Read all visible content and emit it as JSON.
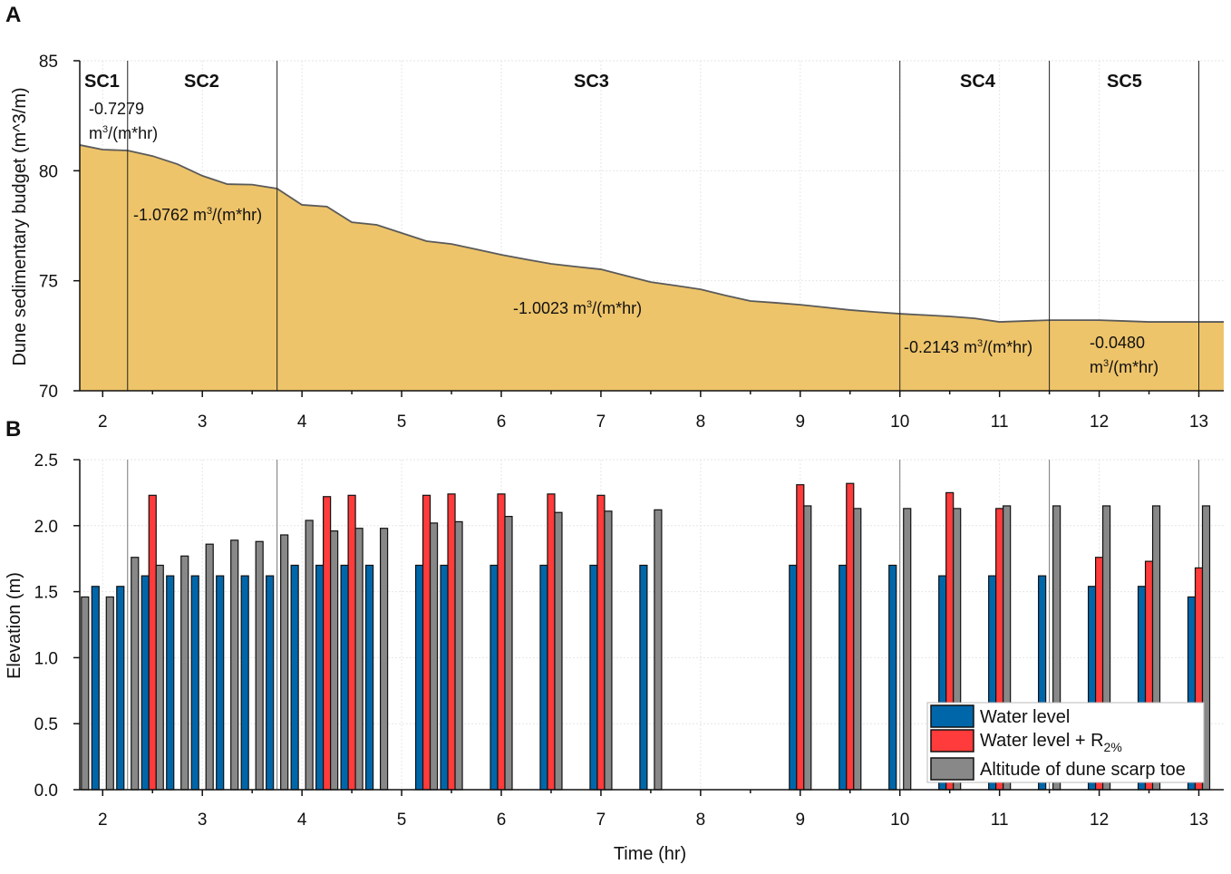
{
  "chart_data": [
    {
      "panel": "A",
      "type": "area",
      "ylabel": "Dune sedimentary budget (m^3/m)",
      "xlim": [
        1.77,
        13.25
      ],
      "ylim": [
        70,
        85
      ],
      "xticks": [
        2,
        3,
        4,
        5,
        6,
        7,
        8,
        9,
        10,
        11,
        12,
        13
      ],
      "yticks": [
        70,
        75,
        80,
        85
      ],
      "grid": true,
      "fill_color": "#EEC46A",
      "line_color": "#5a5a5a",
      "x": [
        1.75,
        2,
        2.25,
        2.5,
        2.75,
        3,
        3.25,
        3.5,
        3.75,
        4,
        4.25,
        4.5,
        4.75,
        5,
        5.25,
        5.5,
        5.75,
        6,
        6.25,
        6.5,
        6.75,
        7,
        7.25,
        7.5,
        7.75,
        8,
        8.25,
        8.5,
        8.75,
        9,
        9.25,
        9.5,
        9.75,
        10,
        10.25,
        10.5,
        10.75,
        11,
        11.25,
        11.5,
        11.75,
        12,
        12.25,
        12.5,
        12.75,
        13,
        13.25
      ],
      "y": [
        81.17,
        80.96,
        80.92,
        80.67,
        80.3,
        79.77,
        79.39,
        79.37,
        79.19,
        78.45,
        78.37,
        77.66,
        77.54,
        77.17,
        76.8,
        76.67,
        76.43,
        76.18,
        75.97,
        75.77,
        75.64,
        75.52,
        75.23,
        74.94,
        74.78,
        74.61,
        74.33,
        74.08,
        74.0,
        73.91,
        73.79,
        73.67,
        73.58,
        73.5,
        73.44,
        73.38,
        73.29,
        73.13,
        73.17,
        73.21,
        73.21,
        73.21,
        73.17,
        73.13,
        73.13,
        73.13,
        73.13
      ],
      "stage_boundaries": [
        2.25,
        3.75,
        10,
        11.5,
        13
      ],
      "stages": [
        {
          "label": "SC1",
          "rate_line1": "-0.7279",
          "rate_line2": "m",
          "rate_sup": "3",
          "rate_tail": "/(m*hr)"
        },
        {
          "label": "SC2",
          "rate_line1": "-1.0762 m",
          "rate_sup": "3",
          "rate_tail": "/(m*hr)"
        },
        {
          "label": "SC3",
          "rate_line1": "-1.0023 m",
          "rate_sup": "3",
          "rate_tail": "/(m*hr)"
        },
        {
          "label": "SC4",
          "rate_line1": "-0.2143 m",
          "rate_sup": "3",
          "rate_tail": "/(m*hr)"
        },
        {
          "label": "SC5",
          "rate_line1": "-0.0480",
          "rate_line2": "m",
          "rate_sup": "3",
          "rate_tail": "/(m*hr)"
        }
      ]
    },
    {
      "panel": "B",
      "type": "bar",
      "xlabel": "Time (hr)",
      "ylabel": "Elevation (m)",
      "xlim": [
        1.77,
        13.25
      ],
      "ylim": [
        0,
        2.5
      ],
      "xticks": [
        2,
        3,
        4,
        5,
        6,
        7,
        8,
        9,
        10,
        11,
        12,
        13
      ],
      "yticks": [
        "0.0",
        "0.5",
        "1.0",
        "1.5",
        "2.0",
        "2.5"
      ],
      "grid": true,
      "legend_placement": "bottom-right",
      "x": [
        1.75,
        2,
        2.25,
        2.5,
        2.75,
        3,
        3.25,
        3.5,
        3.75,
        4,
        4.25,
        4.5,
        4.75,
        5.25,
        5.5,
        6,
        6.5,
        7,
        7.5,
        9,
        9.5,
        10,
        10.5,
        11,
        11.5,
        12,
        12.5,
        13
      ],
      "series": [
        {
          "name": "Water level",
          "color": "#0066AA",
          "values": [
            null,
            1.54,
            1.54,
            1.62,
            1.62,
            1.62,
            1.62,
            1.62,
            1.62,
            1.7,
            1.7,
            1.7,
            1.7,
            1.7,
            1.7,
            1.7,
            1.7,
            1.7,
            1.7,
            1.7,
            1.7,
            1.7,
            1.62,
            1.62,
            1.62,
            1.54,
            1.54,
            1.46
          ]
        },
        {
          "name": "Water level + R",
          "name_sub": "2%",
          "color": "#FF3B3B",
          "values": [
            null,
            null,
            null,
            2.23,
            null,
            null,
            null,
            null,
            null,
            null,
            2.22,
            2.23,
            null,
            2.23,
            2.24,
            2.24,
            2.24,
            2.23,
            null,
            2.31,
            2.32,
            null,
            2.25,
            2.13,
            null,
            1.76,
            1.73,
            1.68
          ]
        },
        {
          "name": "Altitude of dune scarp toe",
          "color": "#888888",
          "values": [
            1.46,
            1.46,
            1.76,
            1.7,
            1.77,
            1.86,
            1.89,
            1.88,
            1.93,
            2.04,
            1.96,
            1.98,
            1.98,
            2.02,
            2.03,
            2.07,
            2.1,
            2.11,
            2.12,
            2.15,
            2.13,
            2.13,
            2.13,
            2.15,
            2.15,
            2.15,
            2.15,
            2.15
          ]
        }
      ],
      "stage_boundaries": [
        2.25,
        3.75,
        10,
        11.5,
        13
      ]
    }
  ],
  "panel_labels": {
    "a": "A",
    "b": "B"
  }
}
